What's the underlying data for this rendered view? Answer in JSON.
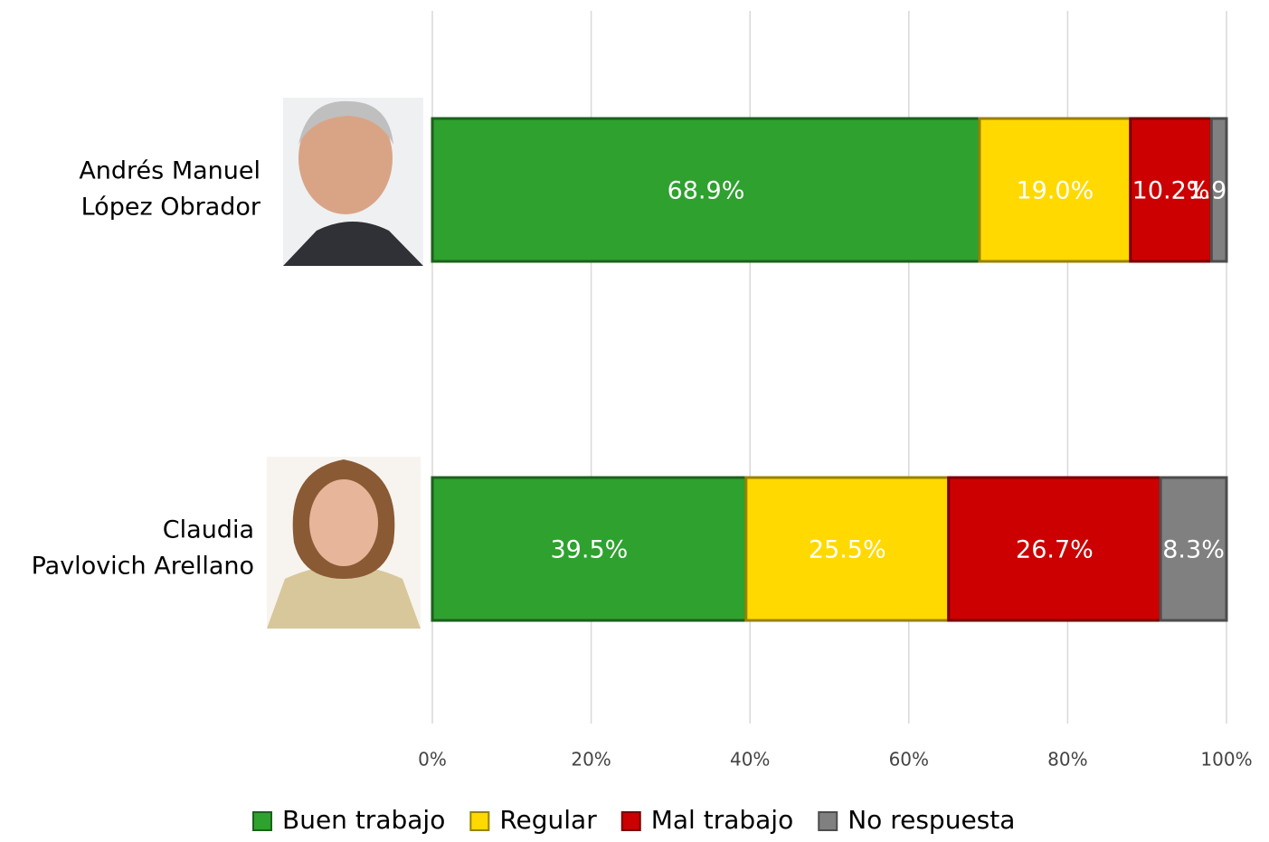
{
  "chart_data": {
    "type": "stacked-bar-horizontal",
    "categories": [
      [
        "Andrés Manuel",
        "López Obrador"
      ],
      [
        "Claudia",
        "Pavlovich Arellano"
      ]
    ],
    "series": [
      {
        "name": "Buen trabajo",
        "color": "#2ea12e",
        "values": [
          68.9,
          39.5
        ],
        "value_labels": [
          "68.9%",
          "39.5%"
        ]
      },
      {
        "name": "Regular",
        "color": "#ffd900",
        "values": [
          19.0,
          25.5
        ],
        "value_labels": [
          "19.0%",
          "25.5%"
        ]
      },
      {
        "name": "Mal trabajo",
        "color": "#cc0000",
        "values": [
          10.2,
          26.7
        ],
        "value_labels": [
          "10.2%",
          "26.7%"
        ]
      },
      {
        "name": "No respuesta",
        "color": "#808080",
        "values": [
          1.9,
          8.3
        ],
        "value_labels": [
          "1.9%",
          "8.3%"
        ]
      }
    ],
    "xlim": [
      0,
      100
    ],
    "xticks": [
      {
        "value": 0,
        "label": "0%"
      },
      {
        "value": 20,
        "label": "20%"
      },
      {
        "value": 40,
        "label": "40%"
      },
      {
        "value": 60,
        "label": "60%"
      },
      {
        "value": 80,
        "label": "80%"
      },
      {
        "value": 100,
        "label": "100%"
      }
    ],
    "grid": true,
    "legend": "bottom"
  }
}
